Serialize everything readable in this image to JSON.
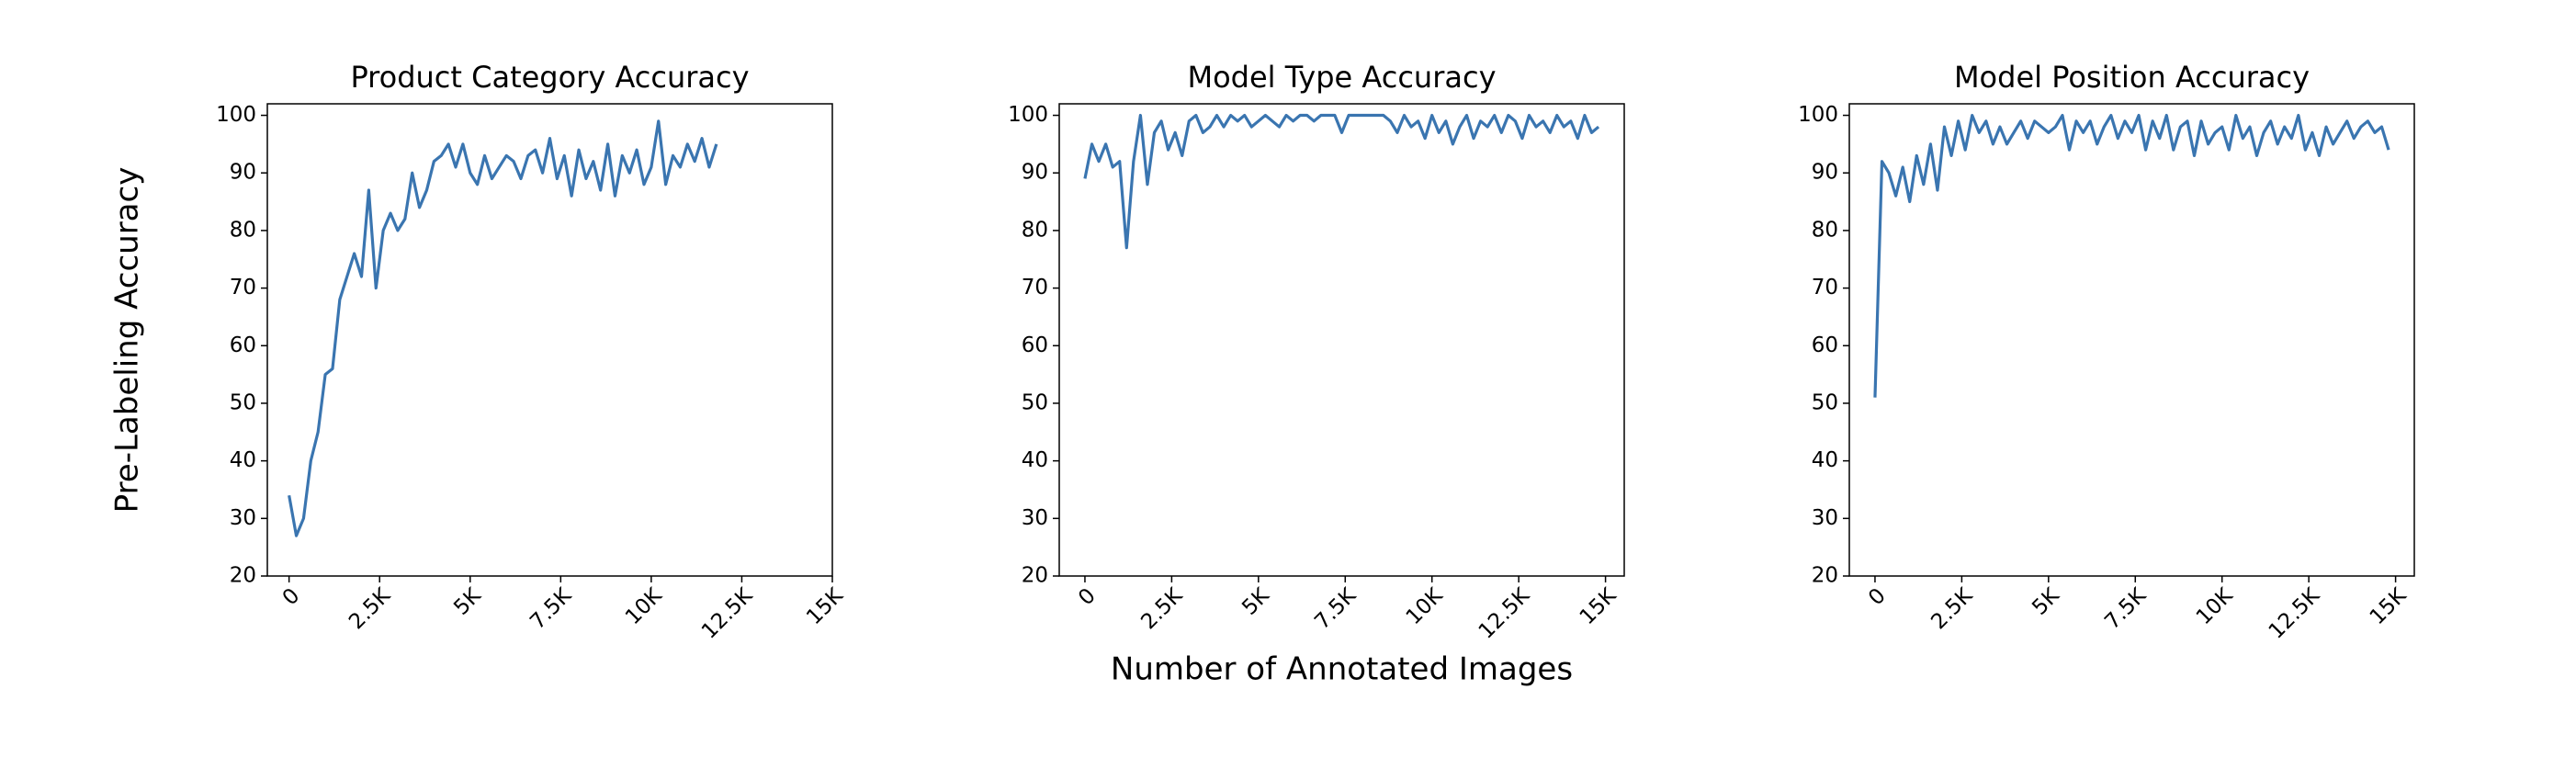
{
  "chart_data": [
    {
      "type": "line",
      "title": "Product Category Accuracy",
      "ylabel": "Pre-Labeling Accuracy",
      "color": "#3a75b0",
      "x": [
        0,
        200,
        400,
        600,
        800,
        1000,
        1200,
        1400,
        1600,
        1800,
        2000,
        2200,
        2400,
        2600,
        2800,
        3000,
        3200,
        3400,
        3600,
        3800,
        4000,
        4200,
        4400,
        4600,
        4800,
        5000,
        5200,
        5400,
        5600,
        5800,
        6000,
        6200,
        6400,
        6600,
        6800,
        7000,
        7200,
        7400,
        7600,
        7800,
        8000,
        8200,
        8400,
        8600,
        8800,
        9000,
        9200,
        9400,
        9600,
        9800,
        10000,
        10200,
        10400,
        10600,
        10800,
        11000,
        11200,
        11400,
        11600,
        11800
      ],
      "values": [
        34,
        27,
        30,
        40,
        45,
        55,
        56,
        68,
        72,
        76,
        72,
        87,
        70,
        80,
        83,
        80,
        82,
        90,
        84,
        87,
        92,
        93,
        95,
        91,
        95,
        90,
        88,
        93,
        89,
        91,
        93,
        92,
        89,
        93,
        94,
        90,
        96,
        89,
        93,
        86,
        94,
        89,
        92,
        87,
        95,
        86,
        93,
        90,
        94,
        88,
        91,
        99,
        88,
        93,
        91,
        95,
        92,
        96,
        91,
        95
      ],
      "xlim": [
        -600,
        15000
      ],
      "ylim": [
        20,
        102
      ],
      "xticks": [
        0,
        {
          "value": 2500,
          "label": "2.5K"
        },
        {
          "value": 5000,
          "label": "5K"
        },
        {
          "value": 7500,
          "label": "7.5K"
        },
        {
          "value": 10000,
          "label": "10K"
        },
        {
          "value": 12500,
          "label": "12.5K"
        },
        {
          "value": 15000,
          "label": "15K"
        }
      ],
      "yticks": [
        20,
        30,
        40,
        50,
        60,
        70,
        80,
        90,
        100
      ]
    },
    {
      "type": "line",
      "title": "Model Type Accuracy",
      "xlabel": "Number of Annotated Images",
      "color": "#3a75b0",
      "x": [
        0,
        200,
        400,
        600,
        800,
        1000,
        1200,
        1400,
        1600,
        1800,
        2000,
        2200,
        2400,
        2600,
        2800,
        3000,
        3200,
        3400,
        3600,
        3800,
        4000,
        4200,
        4400,
        4600,
        4800,
        5000,
        5200,
        5400,
        5600,
        5800,
        6000,
        6200,
        6400,
        6600,
        6800,
        7000,
        7200,
        7400,
        7600,
        7800,
        8000,
        8200,
        8400,
        8600,
        8800,
        9000,
        9200,
        9400,
        9600,
        9800,
        10000,
        10200,
        10400,
        10600,
        10800,
        11000,
        11200,
        11400,
        11600,
        11800,
        12000,
        12200,
        12400,
        12600,
        12800,
        13000,
        13200,
        13400,
        13600,
        13800,
        14000,
        14200,
        14400,
        14600,
        14800
      ],
      "values": [
        89,
        95,
        92,
        95,
        91,
        92,
        77,
        92,
        100,
        88,
        97,
        99,
        94,
        97,
        93,
        99,
        100,
        97,
        98,
        100,
        98,
        100,
        99,
        100,
        98,
        99,
        100,
        99,
        98,
        100,
        99,
        100,
        100,
        99,
        100,
        100,
        100,
        97,
        100,
        100,
        100,
        100,
        100,
        100,
        99,
        97,
        100,
        98,
        99,
        96,
        100,
        97,
        99,
        95,
        98,
        100,
        96,
        99,
        98,
        100,
        97,
        100,
        99,
        96,
        100,
        98,
        99,
        97,
        100,
        98,
        99,
        96,
        100,
        97,
        98
      ],
      "xlim": [
        -740,
        15540
      ],
      "ylim": [
        20,
        102
      ],
      "xticks": [
        0,
        {
          "value": 2500,
          "label": "2.5K"
        },
        {
          "value": 5000,
          "label": "5K"
        },
        {
          "value": 7500,
          "label": "7.5K"
        },
        {
          "value": 10000,
          "label": "10K"
        },
        {
          "value": 12500,
          "label": "12.5K"
        },
        {
          "value": 15000,
          "label": "15K"
        }
      ],
      "yticks": [
        20,
        30,
        40,
        50,
        60,
        70,
        80,
        90,
        100
      ]
    },
    {
      "type": "line",
      "title": "Model Position Accuracy",
      "color": "#3a75b0",
      "x": [
        0,
        200,
        400,
        600,
        800,
        1000,
        1200,
        1400,
        1600,
        1800,
        2000,
        2200,
        2400,
        2600,
        2800,
        3000,
        3200,
        3400,
        3600,
        3800,
        4000,
        4200,
        4400,
        4600,
        4800,
        5000,
        5200,
        5400,
        5600,
        5800,
        6000,
        6200,
        6400,
        6600,
        6800,
        7000,
        7200,
        7400,
        7600,
        7800,
        8000,
        8200,
        8400,
        8600,
        8800,
        9000,
        9200,
        9400,
        9600,
        9800,
        10000,
        10200,
        10400,
        10600,
        10800,
        11000,
        11200,
        11400,
        11600,
        11800,
        12000,
        12200,
        12400,
        12600,
        12800,
        13000,
        13200,
        13400,
        13600,
        13800,
        14000,
        14200,
        14400,
        14600,
        14800
      ],
      "values": [
        51,
        92,
        90,
        86,
        91,
        85,
        93,
        88,
        95,
        87,
        98,
        93,
        99,
        94,
        100,
        97,
        99,
        95,
        98,
        95,
        97,
        99,
        96,
        99,
        98,
        97,
        98,
        100,
        94,
        99,
        97,
        99,
        95,
        98,
        100,
        96,
        99,
        97,
        100,
        94,
        99,
        96,
        100,
        94,
        98,
        99,
        93,
        99,
        95,
        97,
        98,
        94,
        100,
        96,
        98,
        93,
        97,
        99,
        95,
        98,
        96,
        100,
        94,
        97,
        93,
        98,
        95,
        97,
        99,
        96,
        98,
        99,
        97,
        98,
        94
      ],
      "xlim": [
        -740,
        15540
      ],
      "ylim": [
        20,
        102
      ],
      "xticks": [
        0,
        {
          "value": 2500,
          "label": "2.5K"
        },
        {
          "value": 5000,
          "label": "5K"
        },
        {
          "value": 7500,
          "label": "7.5K"
        },
        {
          "value": 10000,
          "label": "10K"
        },
        {
          "value": 12500,
          "label": "12.5K"
        },
        {
          "value": 15000,
          "label": "15K"
        }
      ],
      "yticks": [
        20,
        30,
        40,
        50,
        60,
        70,
        80,
        90,
        100
      ]
    }
  ]
}
